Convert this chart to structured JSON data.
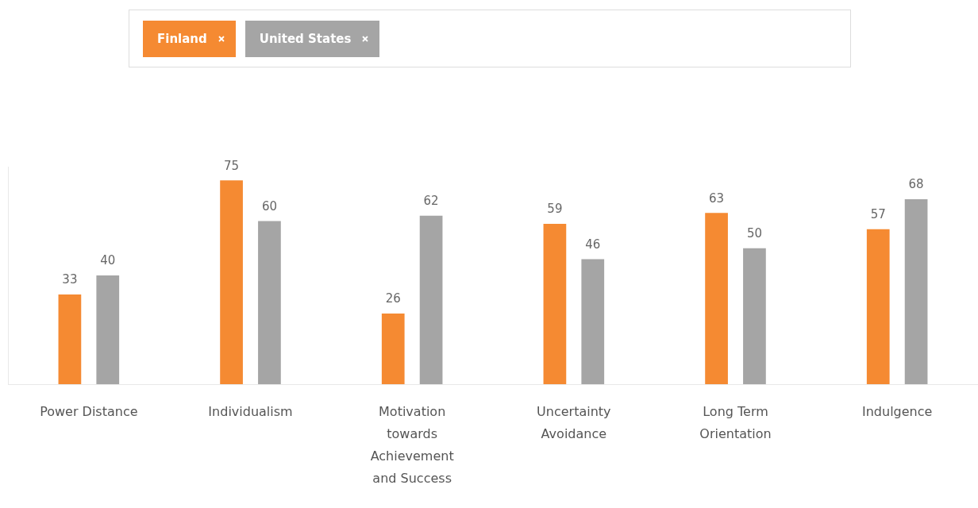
{
  "chart_data": {
    "type": "bar",
    "categories": [
      "Power Distance",
      "Individualism",
      "Motivation towards Achievement and Success",
      "Uncertainty Avoidance",
      "Long Term Orientation",
      "Indulgence"
    ],
    "series": [
      {
        "name": "Finland",
        "color": "#f58a32",
        "values": [
          33,
          75,
          26,
          59,
          63,
          57
        ]
      },
      {
        "name": "United States",
        "color": "#a5a5a5",
        "values": [
          40,
          60,
          62,
          46,
          50,
          68
        ]
      }
    ],
    "data_labels": true,
    "legend": "top",
    "grid": false,
    "tick_labels": "x"
  }
}
